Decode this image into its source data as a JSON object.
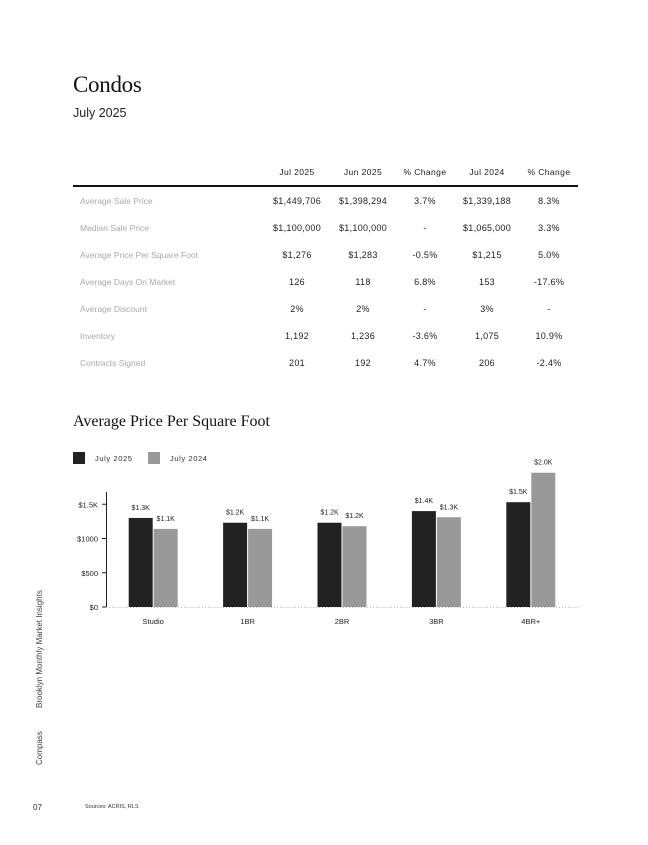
{
  "page": {
    "title": "Condos",
    "subtitle": "July 2025",
    "page_number": "07",
    "sources": "Sources: ACRIS, RLS",
    "side_brand": "Compass",
    "side_report": "Brooklyn Monthly Market Insights"
  },
  "table": {
    "headers": [
      "Jul 2025",
      "Jun 2025",
      "% Change",
      "Jul 2024",
      "% Change"
    ],
    "rows": [
      {
        "label": "Average Sale Price",
        "values": [
          "$1,449,706",
          "$1,398,294",
          "3.7%",
          "$1,339,188",
          "8.3%"
        ]
      },
      {
        "label": "Median Sale Price",
        "values": [
          "$1,100,000",
          "$1,100,000",
          "-",
          "$1,065,000",
          "3.3%"
        ]
      },
      {
        "label": "Average Price Per Square Foot",
        "values": [
          "$1,276",
          "$1,283",
          "-0.5%",
          "$1,215",
          "5.0%"
        ]
      },
      {
        "label": "Average Days On Market",
        "values": [
          "126",
          "118",
          "6.8%",
          "153",
          "-17.6%"
        ]
      },
      {
        "label": "Average Discount",
        "values": [
          "2%",
          "2%",
          "-",
          "3%",
          "-"
        ]
      },
      {
        "label": "Inventory",
        "values": [
          "1,192",
          "1,236",
          "-3.6%",
          "1,075",
          "10.9%"
        ]
      },
      {
        "label": "Contracts Signed",
        "values": [
          "201",
          "192",
          "4.7%",
          "206",
          "-2.4%"
        ]
      }
    ]
  },
  "chart_data": {
    "type": "bar",
    "title": "Average Price Per Square Foot",
    "categories": [
      "Studio",
      "1BR",
      "2BR",
      "3BR",
      "4BR+"
    ],
    "series": [
      {
        "name": "July 2025",
        "color": "#222222",
        "values": [
          1300,
          1230,
          1230,
          1400,
          1530
        ],
        "labels": [
          "$1.3K",
          "$1.2K",
          "$1.2K",
          "$1.4K",
          "$1.5K"
        ]
      },
      {
        "name": "July 2024",
        "color": "#999999",
        "values": [
          1140,
          1140,
          1180,
          1310,
          1960
        ],
        "labels": [
          "$1.1K",
          "$1.1K",
          "$1.2K",
          "$1.3K",
          "$2.0K"
        ]
      }
    ],
    "yticks": [
      0,
      500,
      1000,
      1500
    ],
    "ytick_labels": [
      "$0",
      "$500",
      "$1000",
      "$1.5K"
    ],
    "ylim": [
      0,
      2000
    ],
    "legend_position": "top-left",
    "grid": false
  }
}
